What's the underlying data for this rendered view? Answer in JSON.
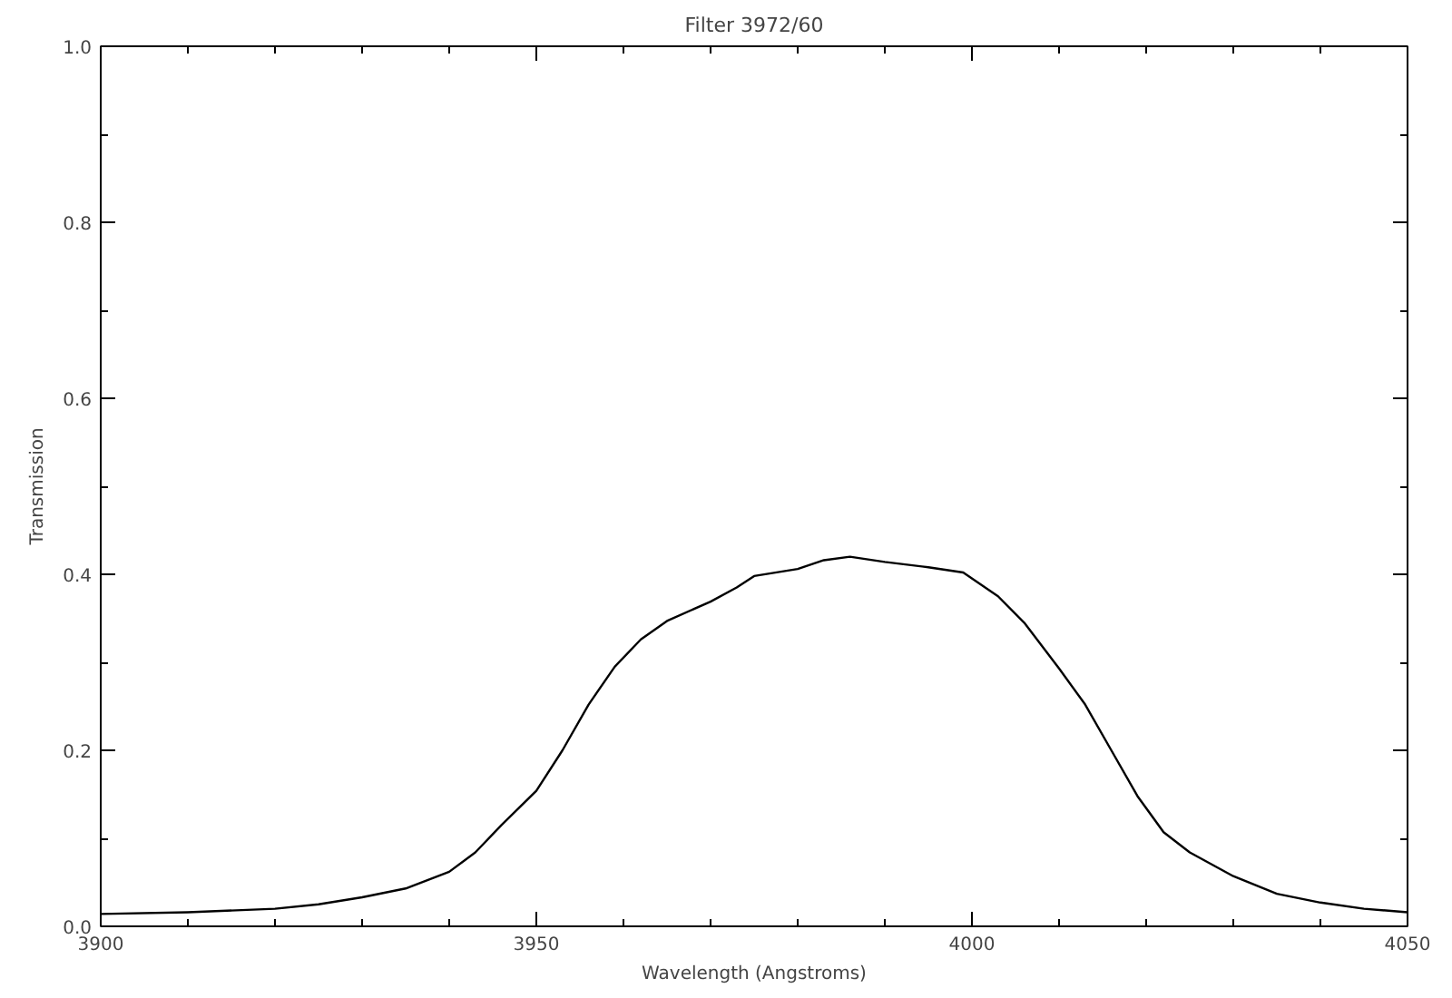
{
  "chart_data": {
    "type": "line",
    "title": "Filter 3972/60",
    "xlabel": "Wavelength (Angstroms)",
    "ylabel": "Transmission",
    "x": [
      3900,
      3910,
      3920,
      3925,
      3930,
      3935,
      3940,
      3943,
      3946,
      3950,
      3953,
      3956,
      3959,
      3962,
      3965,
      3970,
      3973,
      3975,
      3980,
      3983,
      3986,
      3990,
      3995,
      3999,
      4003,
      4006,
      4010,
      4013,
      4016,
      4019,
      4022,
      4025,
      4030,
      4035,
      4040,
      4045,
      4050
    ],
    "series": [
      {
        "color": "#000000",
        "values": [
          0.014,
          0.016,
          0.02,
          0.025,
          0.033,
          0.043,
          0.062,
          0.084,
          0.115,
          0.154,
          0.2,
          0.252,
          0.295,
          0.326,
          0.347,
          0.369,
          0.385,
          0.398,
          0.406,
          0.416,
          0.42,
          0.414,
          0.408,
          0.402,
          0.375,
          0.345,
          0.293,
          0.252,
          0.2,
          0.148,
          0.107,
          0.084,
          0.057,
          0.037,
          0.027,
          0.02,
          0.016
        ]
      }
    ],
    "xlim": [
      3900,
      4050
    ],
    "xticks": [
      3900,
      3950,
      4000,
      4050
    ],
    "ylim": [
      0,
      1
    ],
    "yticks": [
      {
        "value": 0,
        "label": "0.0"
      },
      {
        "value": 0.2,
        "label": "0.2"
      },
      {
        "value": 0.4,
        "label": "0.4"
      },
      {
        "value": 0.6,
        "label": "0.6"
      },
      {
        "value": 0.8,
        "label": "0.8"
      },
      {
        "value": 1,
        "label": "1.0"
      }
    ],
    "grid": false,
    "marker": "none",
    "line_style": "solid"
  }
}
